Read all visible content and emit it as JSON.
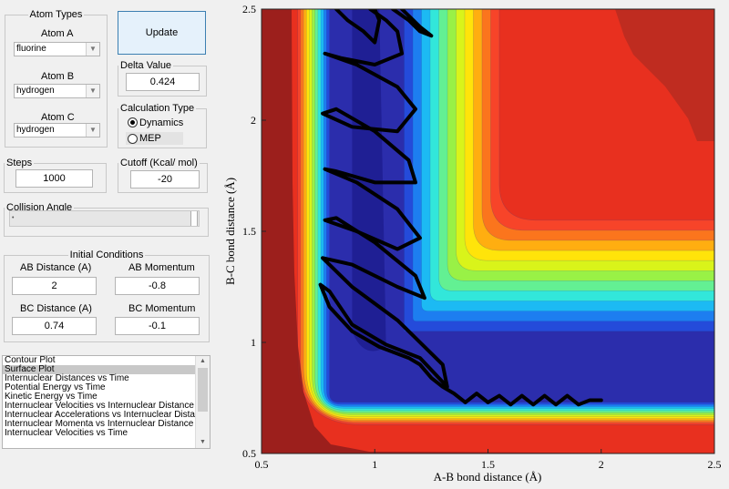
{
  "atom_types": {
    "legend": "Atom Types",
    "atom_a": {
      "label": "Atom A",
      "value": "fluorine"
    },
    "atom_b": {
      "label": "Atom B",
      "value": "hydrogen"
    },
    "atom_c": {
      "label": "Atom C",
      "value": "hydrogen"
    }
  },
  "update_button": "Update",
  "delta": {
    "legend": "Delta Value",
    "value": "0.424"
  },
  "calc_type": {
    "legend": "Calculation Type",
    "options": [
      "Dynamics",
      "MEP"
    ],
    "selected": "Dynamics"
  },
  "steps": {
    "legend": "Steps",
    "value": "1000"
  },
  "cutoff": {
    "legend": "Cutoff (Kcal/ mol)",
    "value": "-20"
  },
  "collision_angle": {
    "legend": "Collision Angle"
  },
  "initial_conditions": {
    "legend": "Initial Conditions",
    "ab_distance": {
      "label": "AB Distance (A)",
      "value": "2"
    },
    "ab_momentum": {
      "label": "AB Momentum",
      "value": "-0.8"
    },
    "bc_distance": {
      "label": "BC Distance (A)",
      "value": "0.74"
    },
    "bc_momentum": {
      "label": "BC Momentum",
      "value": "-0.1"
    }
  },
  "plot_list": {
    "selected": "Surface Plot",
    "items": [
      "Contour Plot",
      "Surface Plot",
      "Internuclear Distances vs Time",
      "Potential Energy vs Time",
      "Kinetic Energy vs Time",
      "Internuclear Velocities vs Internuclear Distance",
      "Internuclear Accelerations vs Internuclear Distance",
      "Internuclear Momenta vs Internuclear Distance",
      "Internuclear Velocities vs Time"
    ]
  },
  "colors": {
    "accent_button": "#e5f1fb",
    "list_selection": "#c8c8c8"
  },
  "chart_data": {
    "type": "contour",
    "xlabel": "A-B bond distance (Å)",
    "ylabel": "B-C bond distance (Å)",
    "xlim": [
      0.5,
      2.5
    ],
    "ylim": [
      0.5,
      2.5
    ],
    "xticks": [
      "0.5",
      "1",
      "1.5",
      "2",
      "2.5"
    ],
    "yticks": [
      "0.5",
      "1",
      "1.5",
      "2",
      "2.5"
    ],
    "colormap": "jet",
    "trajectory_start": {
      "x": 2.0,
      "y": 0.74
    },
    "trajectory": [
      [
        2.0,
        0.74
      ],
      [
        1.95,
        0.74
      ],
      [
        1.9,
        0.72
      ],
      [
        1.85,
        0.76
      ],
      [
        1.8,
        0.72
      ],
      [
        1.75,
        0.76
      ],
      [
        1.7,
        0.72
      ],
      [
        1.65,
        0.76
      ],
      [
        1.6,
        0.72
      ],
      [
        1.55,
        0.76
      ],
      [
        1.5,
        0.73
      ],
      [
        1.45,
        0.77
      ],
      [
        1.4,
        0.73
      ],
      [
        1.35,
        0.77
      ],
      [
        1.3,
        0.8
      ],
      [
        1.25,
        0.84
      ],
      [
        1.2,
        0.9
      ],
      [
        1.15,
        0.93
      ],
      [
        1.02,
        0.98
      ],
      [
        0.9,
        1.05
      ],
      [
        0.8,
        1.16
      ],
      [
        0.76,
        1.26
      ],
      [
        0.8,
        1.23
      ],
      [
        0.9,
        1.08
      ],
      [
        1.05,
        0.99
      ],
      [
        1.2,
        0.93
      ],
      [
        1.32,
        0.8
      ],
      [
        1.3,
        0.9
      ],
      [
        1.1,
        1.1
      ],
      [
        0.9,
        1.25
      ],
      [
        0.77,
        1.38
      ],
      [
        0.9,
        1.35
      ],
      [
        1.1,
        1.25
      ],
      [
        1.22,
        1.2
      ],
      [
        1.18,
        1.3
      ],
      [
        1.0,
        1.45
      ],
      [
        0.83,
        1.56
      ],
      [
        0.78,
        1.55
      ],
      [
        0.92,
        1.5
      ],
      [
        1.1,
        1.42
      ],
      [
        1.2,
        1.47
      ],
      [
        1.1,
        1.6
      ],
      [
        0.92,
        1.72
      ],
      [
        0.78,
        1.78
      ],
      [
        0.83,
        1.77
      ],
      [
        1.0,
        1.72
      ],
      [
        1.18,
        1.72
      ],
      [
        1.15,
        1.82
      ],
      [
        1.0,
        1.95
      ],
      [
        0.83,
        2.05
      ],
      [
        0.77,
        2.03
      ],
      [
        0.9,
        1.97
      ],
      [
        1.1,
        1.95
      ],
      [
        1.18,
        2.05
      ],
      [
        1.1,
        2.15
      ],
      [
        0.92,
        2.25
      ],
      [
        0.78,
        2.3
      ],
      [
        0.85,
        2.28
      ],
      [
        1.0,
        2.25
      ],
      [
        1.12,
        2.3
      ],
      [
        1.1,
        2.4
      ],
      [
        1.05,
        2.45
      ],
      [
        0.98,
        2.5
      ]
    ],
    "trajectory_upper": [
      [
        0.83,
        2.5
      ],
      [
        0.88,
        2.45
      ],
      [
        0.95,
        2.4
      ],
      [
        1.0,
        2.35
      ],
      [
        1.02,
        2.45
      ],
      [
        1.0,
        2.5
      ]
    ],
    "trajectory_top": [
      [
        1.08,
        2.5
      ],
      [
        1.15,
        2.45
      ],
      [
        1.2,
        2.4
      ],
      [
        1.25,
        2.38
      ],
      [
        1.2,
        2.42
      ],
      [
        1.12,
        2.5
      ]
    ]
  }
}
